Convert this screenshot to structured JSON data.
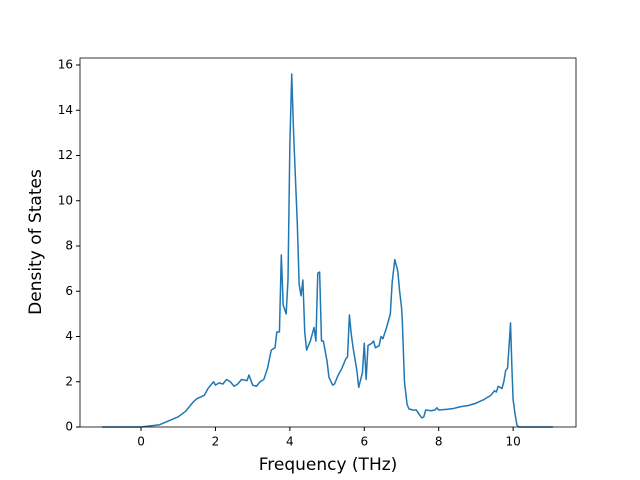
{
  "chart_data": {
    "type": "line",
    "x_label": "Frequency (THz)",
    "y_label": "Density of States",
    "xlim": [
      -1.64,
      11.69
    ],
    "ylim": [
      0,
      16.31
    ],
    "xticks": [
      0,
      2,
      4,
      6,
      8,
      10
    ],
    "yticks": [
      0,
      2,
      4,
      6,
      8,
      10,
      12,
      14,
      16
    ],
    "grid": false,
    "series": [
      {
        "color": "#1f77b4",
        "x": [
          -1.05,
          0,
          0.5,
          1.0,
          1.2,
          1.4,
          1.5,
          1.7,
          1.8,
          1.95,
          2.0,
          2.1,
          2.2,
          2.3,
          2.4,
          2.5,
          2.6,
          2.7,
          2.85,
          2.9,
          3.0,
          3.1,
          3.2,
          3.3,
          3.4,
          3.5,
          3.6,
          3.65,
          3.72,
          3.77,
          3.82,
          3.9,
          3.95,
          4.0,
          4.05,
          4.1,
          4.15,
          4.2,
          4.25,
          4.3,
          4.35,
          4.4,
          4.45,
          4.55,
          4.65,
          4.7,
          4.75,
          4.8,
          4.85,
          4.9,
          5.0,
          5.05,
          5.15,
          5.2,
          5.3,
          5.4,
          5.5,
          5.55,
          5.6,
          5.65,
          5.7,
          5.8,
          5.85,
          5.95,
          6.0,
          6.05,
          6.1,
          6.2,
          6.25,
          6.3,
          6.4,
          6.45,
          6.5,
          6.6,
          6.7,
          6.75,
          6.82,
          6.9,
          6.95,
          7.0,
          7.02,
          7.08,
          7.15,
          7.2,
          7.3,
          7.4,
          7.5,
          7.55,
          7.6,
          7.65,
          7.8,
          7.9,
          7.95,
          8.0,
          8.2,
          8.4,
          8.6,
          8.8,
          9.0,
          9.2,
          9.4,
          9.5,
          9.55,
          9.6,
          9.7,
          9.75,
          9.8,
          9.85,
          9.9,
          9.93,
          9.97,
          10.0,
          10.05,
          10.1,
          10.15,
          11.07
        ],
        "values": [
          0,
          0,
          0.1,
          0.45,
          0.7,
          1.1,
          1.25,
          1.4,
          1.7,
          2.0,
          1.85,
          1.95,
          1.9,
          2.1,
          2.0,
          1.8,
          1.9,
          2.1,
          2.05,
          2.3,
          1.85,
          1.8,
          2.0,
          2.1,
          2.6,
          3.4,
          3.5,
          4.2,
          4.2,
          7.6,
          5.4,
          5.0,
          6.5,
          12.5,
          15.6,
          13.0,
          11.0,
          9.0,
          6.3,
          5.8,
          6.5,
          4.2,
          3.4,
          3.8,
          4.4,
          3.8,
          6.8,
          6.85,
          3.8,
          3.8,
          2.9,
          2.2,
          1.85,
          1.9,
          2.3,
          2.6,
          3.0,
          3.1,
          4.95,
          4.1,
          3.5,
          2.5,
          1.75,
          2.4,
          3.7,
          2.1,
          3.6,
          3.7,
          3.8,
          3.5,
          3.6,
          4.0,
          3.9,
          4.4,
          5.0,
          6.4,
          7.4,
          6.9,
          6.0,
          5.3,
          4.8,
          2.0,
          1.0,
          0.8,
          0.75,
          0.75,
          0.5,
          0.4,
          0.45,
          0.75,
          0.72,
          0.75,
          0.85,
          0.75,
          0.78,
          0.82,
          0.9,
          0.95,
          1.05,
          1.2,
          1.4,
          1.6,
          1.55,
          1.8,
          1.7,
          2.0,
          2.5,
          2.6,
          3.8,
          4.6,
          2.5,
          1.2,
          0.6,
          0.1,
          0.0,
          0
        ]
      }
    ]
  }
}
